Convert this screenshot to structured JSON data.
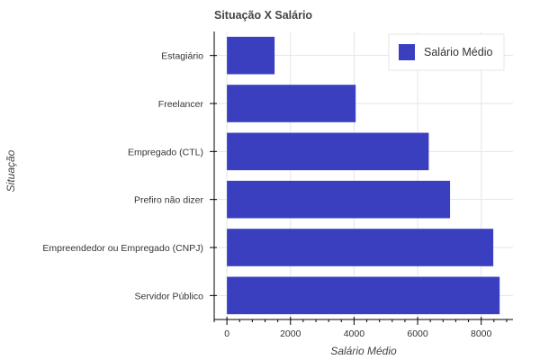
{
  "chart_data": {
    "type": "bar",
    "orientation": "horizontal",
    "title": "Situação X Salário",
    "xlabel": "Salário Médio",
    "ylabel": "Situação",
    "categories": [
      "Estagiário",
      "Freelancer",
      "Empregado (CTL)",
      "Prefiro não dizer",
      "Empreendedor ou Empregado (CNPJ)",
      "Servidor Público"
    ],
    "series": [
      {
        "name": "Salário Médio",
        "values": [
          1500,
          4050,
          6350,
          7020,
          8380,
          8580
        ]
      }
    ],
    "xlim": [
      -400,
      9000
    ],
    "xticks": [
      0,
      2000,
      4000,
      6000,
      8000
    ],
    "grid": true,
    "legend_position": "top-right",
    "bar_color": "#3a3fbf"
  }
}
